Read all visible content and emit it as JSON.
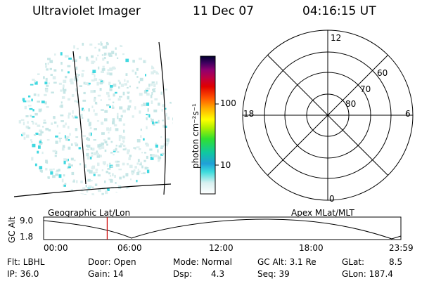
{
  "header": {
    "title": "Ultraviolet Imager",
    "date": "11 Dec 07",
    "time": "04:16:15 UT"
  },
  "colorbar": {
    "unit_label": "photon cm⁻²s⁻¹",
    "ticks": [
      "100",
      "10"
    ]
  },
  "polar": {
    "mlt_labels": {
      "top": "12",
      "left": "18",
      "right": "6",
      "bottom": "0"
    },
    "lat_labels": [
      "60",
      "70",
      "80"
    ]
  },
  "timeline": {
    "left_label": "Geographic Lat/Lon",
    "right_label": "Apex MLat/MLT",
    "axis_label": "GC Alt",
    "y_ticks": [
      "9.0",
      "1.8"
    ],
    "x_ticks": [
      "00:00",
      "06:00",
      "12:00",
      "18:00",
      "23:59"
    ],
    "marker_color": "#cc0000",
    "marker_hour": 4.27
  },
  "info": {
    "row1": {
      "filter": "Flt: LBHL",
      "door": "Door: Open",
      "mode": "Mode: Normal",
      "gc_alt": "GC Alt: 3.1 Re",
      "glat": "GLat:",
      "glat_val": "8.5"
    },
    "row2": {
      "ip": "IP: 36.0",
      "gain": "Gain: 14",
      "dsp": "Dsp:",
      "dsp_val": "4.3",
      "seq": "Seq: 39",
      "glon": "GLon: 187.4"
    }
  }
}
